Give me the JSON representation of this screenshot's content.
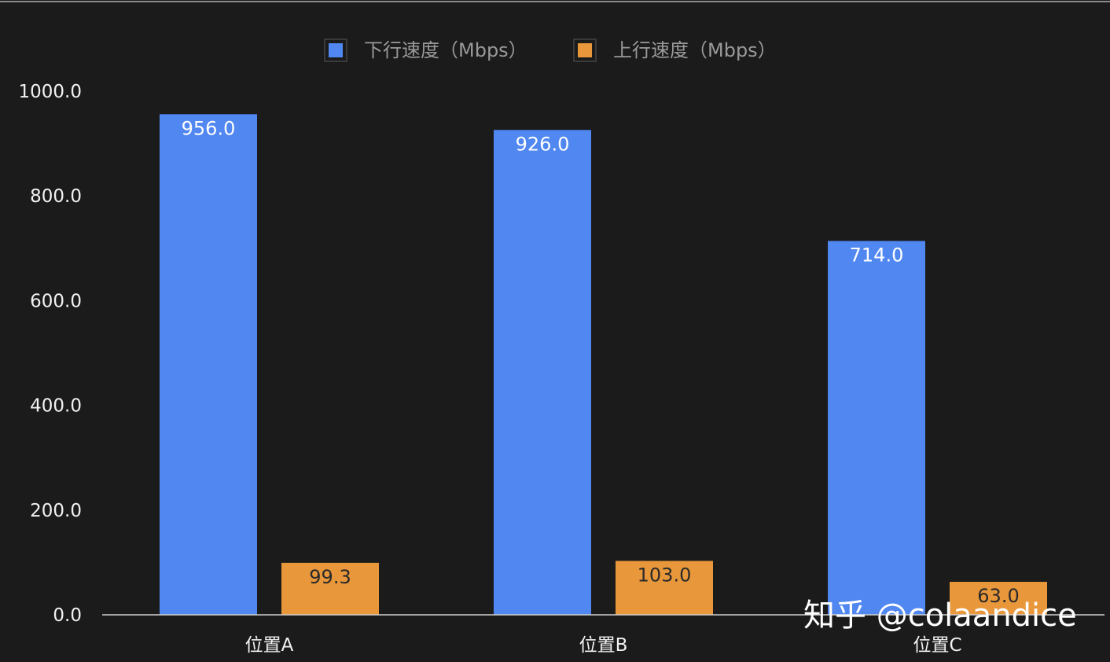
{
  "chart_data": {
    "type": "bar",
    "categories": [
      "位置A",
      "位置B",
      "位置C"
    ],
    "series": [
      {
        "name": "下行速度（Mbps）",
        "values": [
          956.0,
          926.0,
          714.0
        ],
        "labels": [
          "956.0",
          "926.0",
          "714.0"
        ],
        "color": "#5087f0",
        "label_color": "#ffffff"
      },
      {
        "name": "上行速度（Mbps）",
        "values": [
          99.3,
          103.0,
          63.0
        ],
        "labels": [
          "99.3",
          "103.0",
          "63.0"
        ],
        "color": "#e8973a",
        "label_color": "#2a2a2a"
      }
    ],
    "ylim": [
      0,
      1000
    ],
    "yticks": [
      "0.0",
      "200.0",
      "400.0",
      "600.0",
      "800.0",
      "1000.0"
    ],
    "grid": false,
    "legend": "top-center"
  },
  "watermark": "知乎 @colaandice",
  "colors": {
    "background": "#1b1b1b",
    "axis": "#cfcfcf",
    "text": "#f2f2f2"
  }
}
